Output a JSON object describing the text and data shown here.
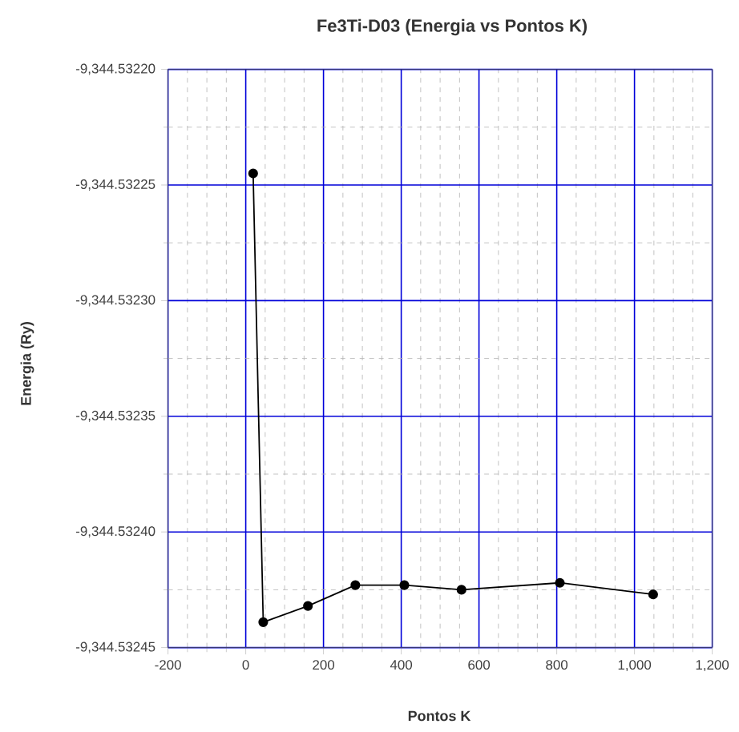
{
  "chart_data": {
    "type": "line",
    "title": "Fe3Ti-D03 (Energia vs Pontos K)",
    "xlabel": "Pontos K",
    "ylabel": "Energia (Ry)",
    "x": [
      19,
      45,
      160,
      282,
      408,
      555,
      808,
      1048
    ],
    "series": [
      {
        "color": "#000000",
        "values": [
          -9344.532245,
          -9344.532439,
          -9344.532432,
          -9344.532423,
          -9344.532423,
          -9344.532425,
          -9344.532422,
          -9344.532427
        ]
      }
    ],
    "xlim": [
      -200,
      1200
    ],
    "xticks": [
      -200,
      0,
      200,
      400,
      600,
      800,
      {
        "value": 1000,
        "label": "1,000"
      },
      {
        "value": 1200,
        "label": "1,200"
      }
    ],
    "ylim": [
      -9344.53245,
      -9344.5322
    ],
    "yticks": [
      {
        "value": -9344.53245,
        "label": "-9,344.53245"
      },
      {
        "value": -9344.5324,
        "label": "-9,344.53240"
      },
      {
        "value": -9344.53235,
        "label": "-9,344.53235"
      },
      {
        "value": -9344.5323,
        "label": "-9,344.53230"
      },
      {
        "value": -9344.53225,
        "label": "-9,344.53225"
      },
      {
        "value": -9344.5322,
        "label": "-9,344.53220"
      }
    ],
    "grid": true,
    "marker": "circle",
    "line_style": "solid"
  }
}
